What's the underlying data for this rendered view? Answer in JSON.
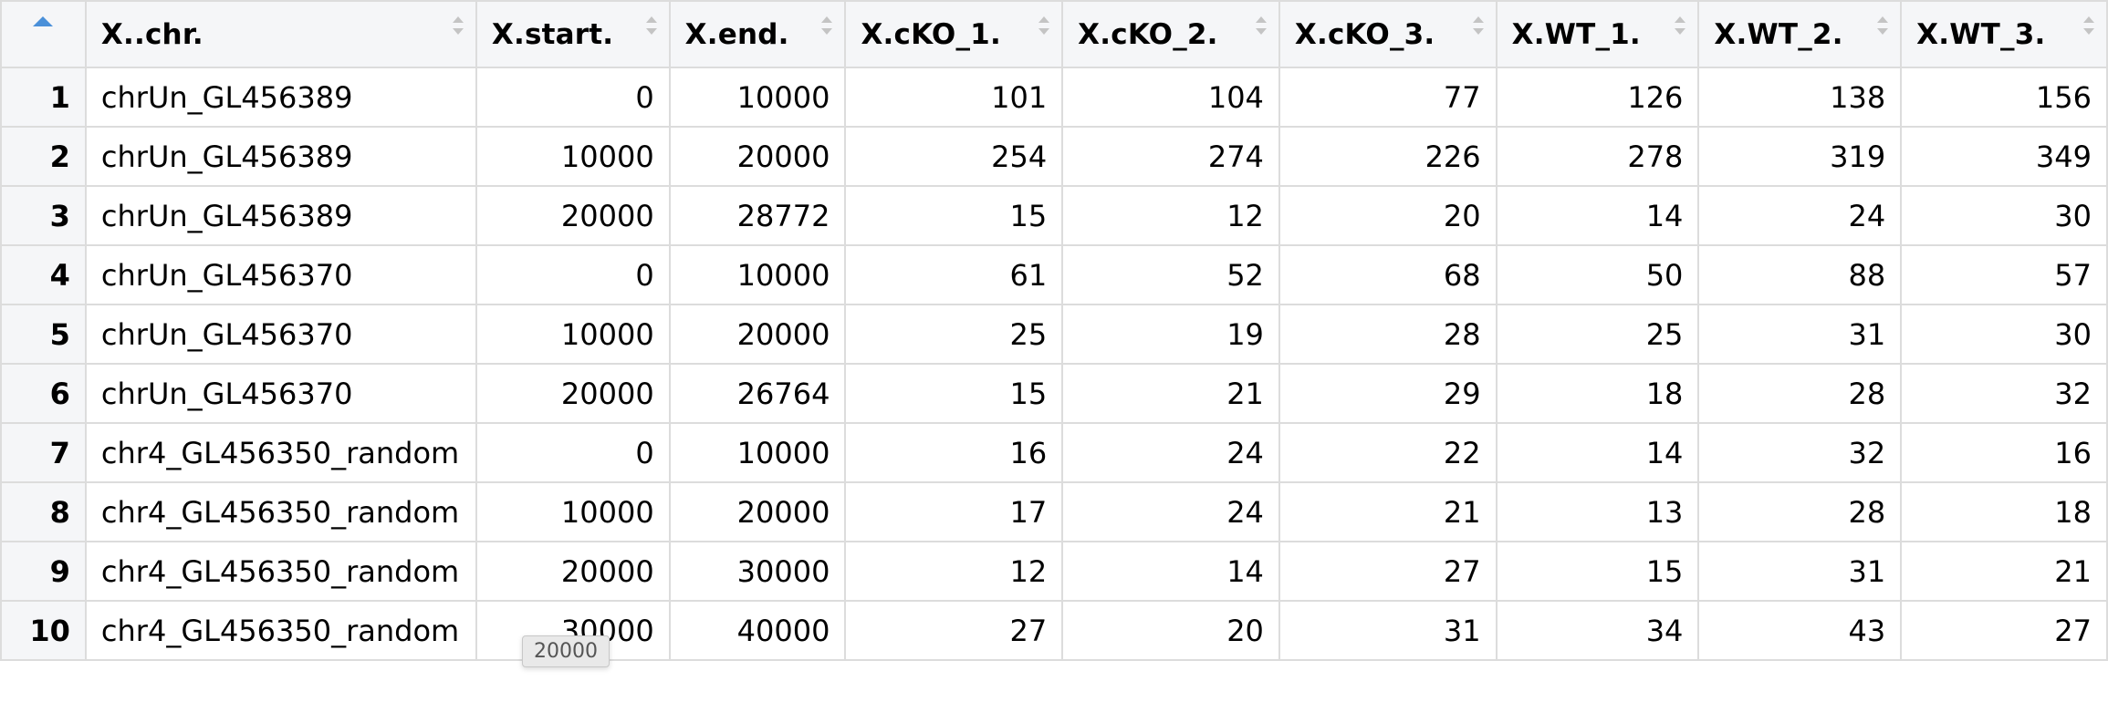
{
  "columns": [
    {
      "label": "X..chr."
    },
    {
      "label": "X.start."
    },
    {
      "label": "X.end."
    },
    {
      "label": "X.cKO_1."
    },
    {
      "label": "X.cKO_2."
    },
    {
      "label": "X.cKO_3."
    },
    {
      "label": "X.WT_1."
    },
    {
      "label": "X.WT_2."
    },
    {
      "label": "X.WT_3."
    }
  ],
  "rows": [
    {
      "n": "1",
      "cells": [
        "chrUn_GL456389",
        "0",
        "10000",
        "101",
        "104",
        "77",
        "126",
        "138",
        "156"
      ]
    },
    {
      "n": "2",
      "cells": [
        "chrUn_GL456389",
        "10000",
        "20000",
        "254",
        "274",
        "226",
        "278",
        "319",
        "349"
      ]
    },
    {
      "n": "3",
      "cells": [
        "chrUn_GL456389",
        "20000",
        "28772",
        "15",
        "12",
        "20",
        "14",
        "24",
        "30"
      ]
    },
    {
      "n": "4",
      "cells": [
        "chrUn_GL456370",
        "0",
        "10000",
        "61",
        "52",
        "68",
        "50",
        "88",
        "57"
      ]
    },
    {
      "n": "5",
      "cells": [
        "chrUn_GL456370",
        "10000",
        "20000",
        "25",
        "19",
        "28",
        "25",
        "31",
        "30"
      ]
    },
    {
      "n": "6",
      "cells": [
        "chrUn_GL456370",
        "20000",
        "26764",
        "15",
        "21",
        "29",
        "18",
        "28",
        "32"
      ]
    },
    {
      "n": "7",
      "cells": [
        "chr4_GL456350_random",
        "0",
        "10000",
        "16",
        "24",
        "22",
        "14",
        "32",
        "16"
      ]
    },
    {
      "n": "8",
      "cells": [
        "chr4_GL456350_random",
        "10000",
        "20000",
        "17",
        "24",
        "21",
        "13",
        "28",
        "18"
      ]
    },
    {
      "n": "9",
      "cells": [
        "chr4_GL456350_random",
        "20000",
        "30000",
        "12",
        "14",
        "27",
        "15",
        "31",
        "21"
      ]
    },
    {
      "n": "10",
      "cells": [
        "chr4_GL456350_random",
        "30000",
        "40000",
        "27",
        "20",
        "31",
        "34",
        "43",
        "27"
      ]
    }
  ],
  "tooltip": {
    "text": "20000"
  },
  "icons": {
    "row_sort": "sort-ascending-icon",
    "column_sort": "sort-updown-icon"
  },
  "colors": {
    "header_bg": "#f5f6f8",
    "grid_line": "#dcdcdc",
    "accent": "#4a90d9"
  }
}
